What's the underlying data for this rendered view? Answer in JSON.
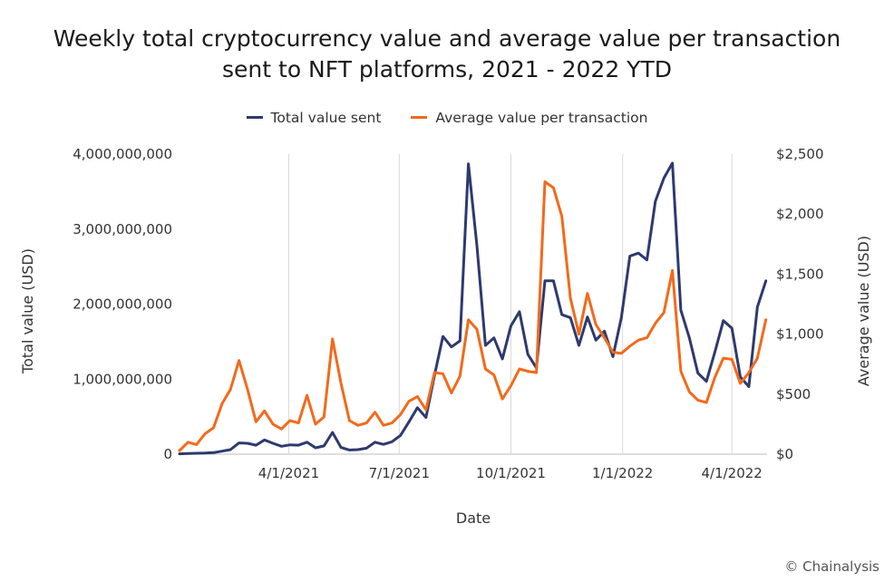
{
  "chart_data": {
    "type": "line",
    "title": "Weekly total cryptocurrency value and average value per transaction sent to NFT platforms, 2021 - 2022 YTD",
    "title_lines": [
      "Weekly total cryptocurrency value and average value per transaction",
      "sent to NFT platforms, 2021 - 2022 YTD"
    ],
    "xlabel": "Date",
    "ylabel": "Total value (USD)",
    "y2label": "Average value (USD)",
    "x_start": "1/1/2021",
    "x_ticks": [
      "4/1/2021",
      "7/1/2021",
      "10/1/2021",
      "1/1/2022",
      "4/1/2022"
    ],
    "ylim": [
      0,
      4000000000
    ],
    "y_ticks": [
      "0",
      "1,000,000,000",
      "2,000,000,000",
      "3,000,000,000",
      "4,000,000,000"
    ],
    "y2lim": [
      0,
      2500
    ],
    "y2_ticks": [
      "$0",
      "$500",
      "$1,000",
      "$1,500",
      "$2,000",
      "$2,500"
    ],
    "grid": "vertical",
    "legend_position": "top",
    "series": [
      {
        "name": "Total value sent",
        "axis": "left",
        "color": "#2e3a6e",
        "x": [
          "2021-01-01",
          "2021-01-08",
          "2021-01-15",
          "2021-01-22",
          "2021-01-29",
          "2021-02-05",
          "2021-02-12",
          "2021-02-19",
          "2021-02-26",
          "2021-03-05",
          "2021-03-12",
          "2021-03-19",
          "2021-03-26",
          "2021-04-02",
          "2021-04-09",
          "2021-04-16",
          "2021-04-23",
          "2021-04-30",
          "2021-05-07",
          "2021-05-14",
          "2021-05-21",
          "2021-05-28",
          "2021-06-04",
          "2021-06-11",
          "2021-06-18",
          "2021-06-25",
          "2021-07-02",
          "2021-07-09",
          "2021-07-16",
          "2021-07-23",
          "2021-07-30",
          "2021-08-06",
          "2021-08-13",
          "2021-08-20",
          "2021-08-27",
          "2021-09-03",
          "2021-09-10",
          "2021-09-17",
          "2021-09-24",
          "2021-10-01",
          "2021-10-08",
          "2021-10-15",
          "2021-10-22",
          "2021-10-29",
          "2021-11-05",
          "2021-11-12",
          "2021-11-19",
          "2021-11-26",
          "2021-12-03",
          "2021-12-10",
          "2021-12-17",
          "2021-12-24",
          "2021-12-31",
          "2022-01-07",
          "2022-01-14",
          "2022-01-21",
          "2022-01-28",
          "2022-02-04",
          "2022-02-11",
          "2022-02-18",
          "2022-02-25",
          "2022-03-04",
          "2022-03-11",
          "2022-03-18",
          "2022-03-25",
          "2022-04-01",
          "2022-04-08",
          "2022-04-15",
          "2022-04-22",
          "2022-04-29"
        ],
        "values": [
          5000000,
          8000000,
          12000000,
          15000000,
          20000000,
          40000000,
          60000000,
          150000000,
          145000000,
          120000000,
          190000000,
          145000000,
          105000000,
          125000000,
          120000000,
          160000000,
          85000000,
          110000000,
          290000000,
          90000000,
          55000000,
          60000000,
          80000000,
          160000000,
          130000000,
          165000000,
          250000000,
          430000000,
          620000000,
          490000000,
          1050000000,
          1570000000,
          1430000000,
          1510000000,
          3870000000,
          2780000000,
          1450000000,
          1550000000,
          1270000000,
          1710000000,
          1900000000,
          1330000000,
          1150000000,
          2310000000,
          2310000000,
          1860000000,
          1820000000,
          1450000000,
          1830000000,
          1520000000,
          1640000000,
          1300000000,
          1820000000,
          2640000000,
          2680000000,
          2590000000,
          3370000000,
          3680000000,
          3880000000,
          1920000000,
          1550000000,
          1080000000,
          970000000,
          1360000000,
          1780000000,
          1680000000,
          1030000000,
          900000000,
          1960000000,
          2310000000
        ]
      },
      {
        "name": "Average value per transaction",
        "axis": "right",
        "color": "#f26a1b",
        "x": [
          "2021-01-01",
          "2021-01-08",
          "2021-01-15",
          "2021-01-22",
          "2021-01-29",
          "2021-02-05",
          "2021-02-12",
          "2021-02-19",
          "2021-02-26",
          "2021-03-05",
          "2021-03-12",
          "2021-03-19",
          "2021-03-26",
          "2021-04-02",
          "2021-04-09",
          "2021-04-16",
          "2021-04-23",
          "2021-04-30",
          "2021-05-07",
          "2021-05-14",
          "2021-05-21",
          "2021-05-28",
          "2021-06-04",
          "2021-06-11",
          "2021-06-18",
          "2021-06-25",
          "2021-07-02",
          "2021-07-09",
          "2021-07-16",
          "2021-07-23",
          "2021-07-30",
          "2021-08-06",
          "2021-08-13",
          "2021-08-20",
          "2021-08-27",
          "2021-09-03",
          "2021-09-10",
          "2021-09-17",
          "2021-09-24",
          "2021-10-01",
          "2021-10-08",
          "2021-10-15",
          "2021-10-22",
          "2021-10-29",
          "2021-11-05",
          "2021-11-12",
          "2021-11-19",
          "2021-11-26",
          "2021-12-03",
          "2021-12-10",
          "2021-12-17",
          "2021-12-24",
          "2021-12-31",
          "2022-01-07",
          "2022-01-14",
          "2022-01-21",
          "2022-01-28",
          "2022-02-04",
          "2022-02-11",
          "2022-02-18",
          "2022-02-25",
          "2022-03-04",
          "2022-03-11",
          "2022-03-18",
          "2022-03-25",
          "2022-04-01",
          "2022-04-08",
          "2022-04-15",
          "2022-04-22",
          "2022-04-29"
        ],
        "values": [
          30,
          100,
          80,
          170,
          220,
          420,
          540,
          780,
          540,
          270,
          360,
          250,
          210,
          280,
          260,
          490,
          250,
          310,
          960,
          590,
          280,
          240,
          260,
          350,
          240,
          260,
          330,
          440,
          480,
          370,
          680,
          670,
          510,
          650,
          1120,
          1040,
          710,
          660,
          460,
          570,
          710,
          690,
          680,
          2270,
          2220,
          1980,
          1300,
          1000,
          1340,
          1080,
          970,
          850,
          840,
          900,
          950,
          970,
          1090,
          1180,
          1530,
          690,
          520,
          450,
          430,
          640,
          800,
          790,
          590,
          680,
          800,
          1120
        ]
      }
    ]
  },
  "credit": "© Chainalysis"
}
